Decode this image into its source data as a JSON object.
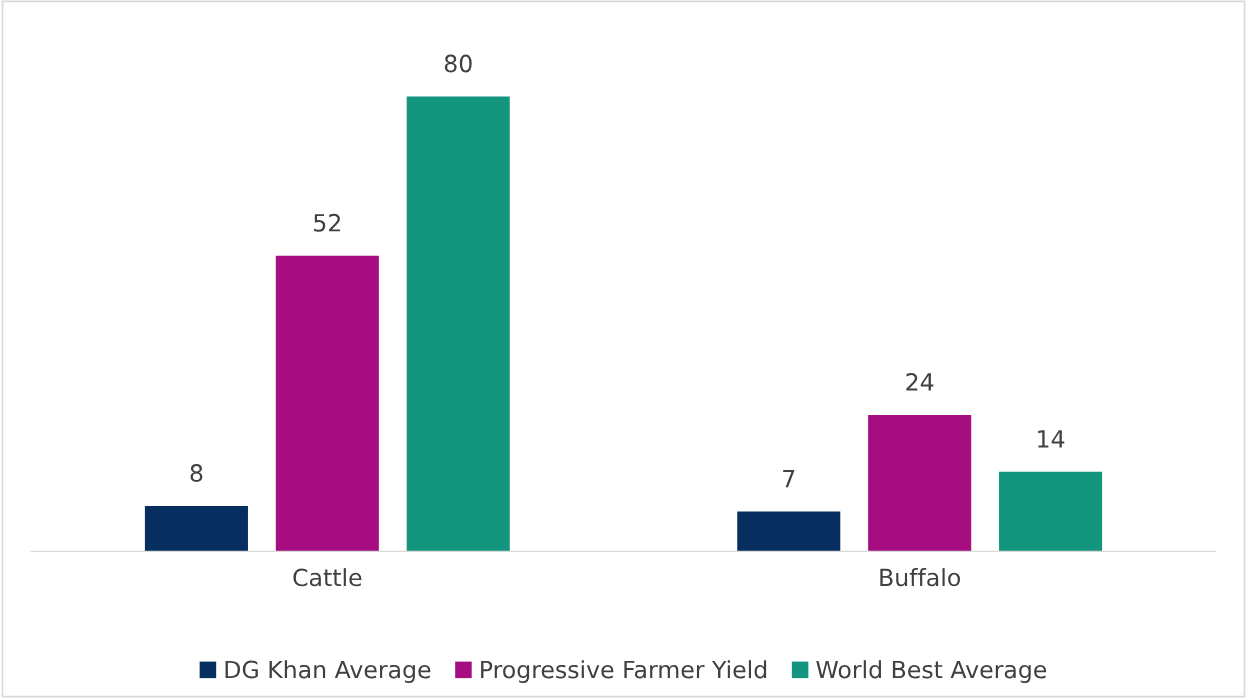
{
  "chart_data": {
    "type": "bar",
    "categories": [
      "Cattle",
      "Buffalo"
    ],
    "series": [
      {
        "name": "DG Khan Average",
        "color": "#062f5f",
        "values": [
          8,
          7
        ]
      },
      {
        "name": "Progressive Farmer Yield",
        "color": "#a50d80",
        "values": [
          52,
          24
        ]
      },
      {
        "name": "World Best Average",
        "color": "#13967d",
        "values": [
          80,
          14
        ]
      }
    ],
    "data_labels": true,
    "tick_labels": "x",
    "grid": false,
    "legend": "bottom"
  }
}
